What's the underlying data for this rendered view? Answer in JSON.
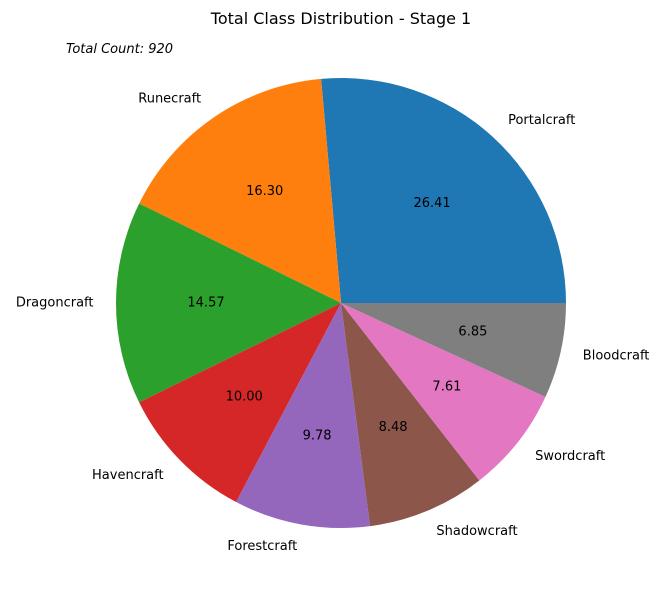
{
  "chart_data": {
    "type": "pie",
    "title": "Total Class Distribution - Stage 1",
    "annotation": "Total Count: 920",
    "labels": [
      "Portalcraft",
      "Runecraft",
      "Dragoncraft",
      "Havencraft",
      "Forestcraft",
      "Shadowcraft",
      "Swordcraft",
      "Bloodcraft"
    ],
    "values": [
      26.41,
      16.3,
      14.57,
      10.0,
      9.78,
      8.48,
      7.61,
      6.85
    ],
    "value_labels": [
      "26.41",
      "16.30",
      "14.57",
      "10.00",
      "9.78",
      "8.48",
      "7.61",
      "6.85"
    ],
    "colors": [
      "#1f77b4",
      "#ff7f0e",
      "#2ca02c",
      "#d62728",
      "#9467bd",
      "#8c564b",
      "#e377c2",
      "#7f7f7f"
    ],
    "start_angle_deg": 0,
    "direction": "counterclockwise",
    "legend": "none"
  }
}
